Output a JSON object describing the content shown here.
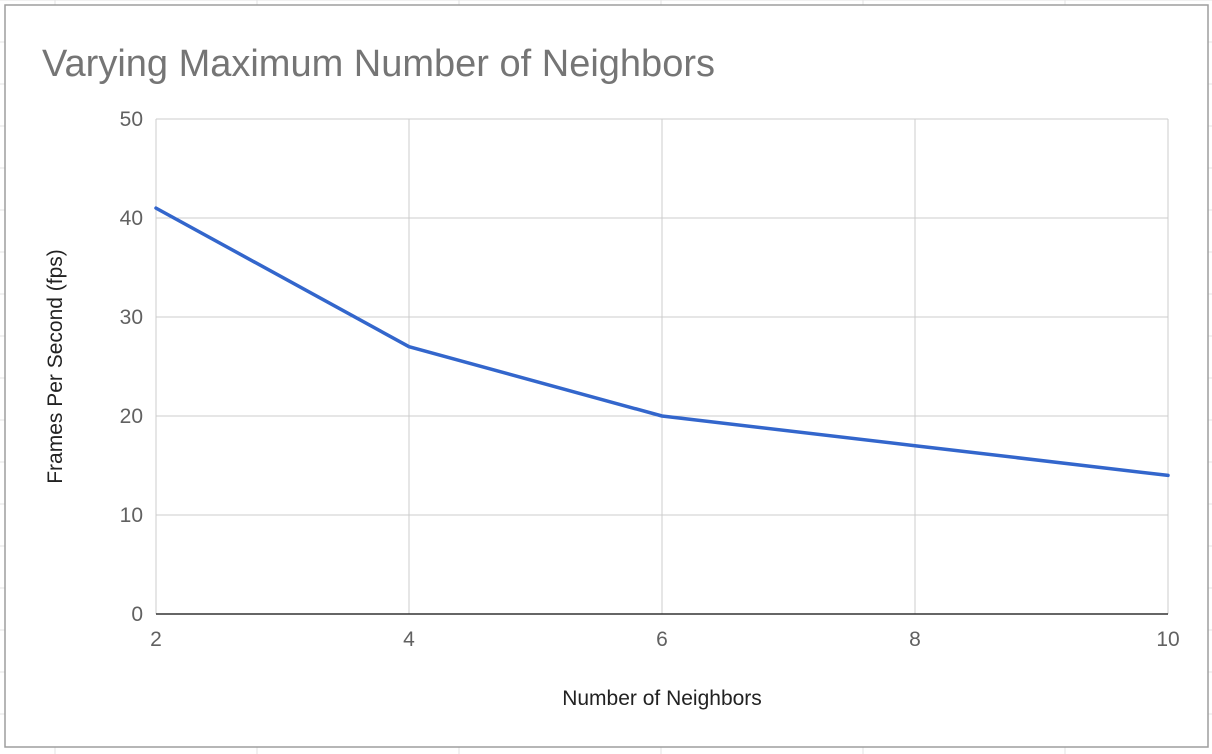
{
  "chart_data": {
    "type": "line",
    "title": "Varying Maximum Number of Neighbors",
    "xlabel": "Number of Neighbors",
    "ylabel": "Frames Per Second (fps)",
    "x": [
      2,
      4,
      6,
      8,
      10
    ],
    "series": [
      {
        "values": [
          41,
          27,
          20,
          17,
          14
        ],
        "color": "#3366cc"
      }
    ],
    "xlim": [
      2,
      10
    ],
    "ylim": [
      0,
      50
    ],
    "x_ticks": [
      2,
      4,
      6,
      8,
      10
    ],
    "y_ticks": [
      0,
      10,
      20,
      30,
      40,
      50
    ],
    "grid": true,
    "legend": "none"
  }
}
